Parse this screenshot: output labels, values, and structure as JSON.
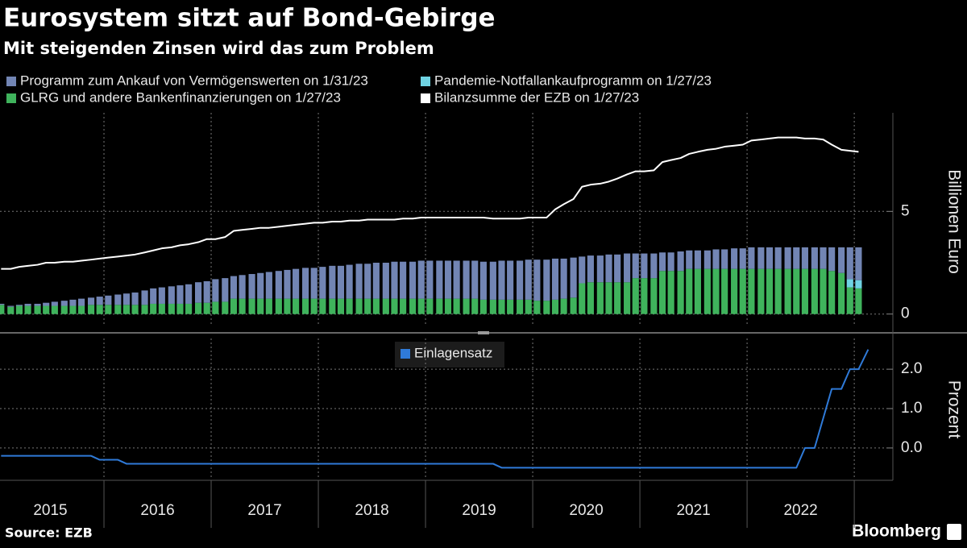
{
  "chart_data": [
    {
      "type": "bar",
      "stacked": true,
      "title": "Eurosystem sitzt auf Bond-Gebirge",
      "subtitle": "Mit steigenden Zinsen wird das zum Problem",
      "ylabel": "Billionen Euro",
      "xlim": [
        2015.03,
        2023.3
      ],
      "xgrid": [
        2016,
        2017,
        2018,
        2019,
        2020,
        2021,
        2022,
        2023
      ],
      "ylim": [
        -0.6,
        9.8
      ],
      "yticks": [
        0,
        5
      ],
      "grid": true,
      "x": [
        2015.04,
        2015.13,
        2015.21,
        2015.29,
        2015.38,
        2015.46,
        2015.54,
        2015.63,
        2015.71,
        2015.79,
        2015.88,
        2015.96,
        2016.04,
        2016.13,
        2016.21,
        2016.29,
        2016.38,
        2016.46,
        2016.54,
        2016.63,
        2016.71,
        2016.79,
        2016.88,
        2016.96,
        2017.04,
        2017.13,
        2017.21,
        2017.29,
        2017.38,
        2017.46,
        2017.54,
        2017.63,
        2017.71,
        2017.79,
        2017.88,
        2017.96,
        2018.04,
        2018.13,
        2018.21,
        2018.29,
        2018.38,
        2018.46,
        2018.54,
        2018.63,
        2018.71,
        2018.79,
        2018.88,
        2018.96,
        2019.04,
        2019.13,
        2019.21,
        2019.29,
        2019.38,
        2019.46,
        2019.54,
        2019.63,
        2019.71,
        2019.79,
        2019.88,
        2019.96,
        2020.04,
        2020.13,
        2020.21,
        2020.29,
        2020.38,
        2020.46,
        2020.54,
        2020.63,
        2020.71,
        2020.79,
        2020.88,
        2020.96,
        2021.04,
        2021.13,
        2021.21,
        2021.29,
        2021.38,
        2021.46,
        2021.54,
        2021.63,
        2021.71,
        2021.79,
        2021.88,
        2021.96,
        2022.04,
        2022.13,
        2022.21,
        2022.29,
        2022.38,
        2022.46,
        2022.54,
        2022.63,
        2022.71,
        2022.79,
        2022.88,
        2022.96,
        2023.04
      ],
      "series": [
        {
          "name": "Programm zum Ankauf von Vermögenswerten on 1/31/23",
          "type": "bar",
          "color": "#7285b4",
          "values": [
            0.05,
            0.05,
            0.05,
            0.1,
            0.1,
            0.15,
            0.2,
            0.25,
            0.3,
            0.35,
            0.35,
            0.4,
            0.45,
            0.5,
            0.55,
            0.6,
            0.7,
            0.75,
            0.8,
            0.85,
            0.9,
            0.95,
            1.0,
            1.05,
            1.1,
            1.15,
            1.1,
            1.15,
            1.2,
            1.25,
            1.3,
            1.35,
            1.4,
            1.45,
            1.5,
            1.5,
            1.55,
            1.6,
            1.6,
            1.65,
            1.7,
            1.7,
            1.75,
            1.75,
            1.8,
            1.8,
            1.8,
            1.85,
            1.85,
            1.85,
            1.85,
            1.85,
            1.85,
            1.85,
            1.85,
            1.85,
            1.9,
            1.9,
            1.9,
            1.95,
            2.0,
            2.0,
            2.0,
            1.95,
            1.95,
            1.3,
            1.3,
            1.3,
            1.35,
            1.35,
            1.4,
            1.2,
            1.2,
            1.2,
            0.9,
            0.9,
            0.95,
            0.9,
            0.9,
            0.9,
            0.95,
            0.95,
            1.0,
            1.0,
            1.05,
            1.05,
            1.05,
            1.05,
            1.05,
            1.05,
            1.05,
            1.05,
            1.05,
            1.15,
            1.25,
            1.55,
            1.6
          ]
        },
        {
          "name": "Pandemie-Notfallankaufprogramm on 1/27/23",
          "type": "bar",
          "color": "#6fd3e3",
          "values": [
            0,
            0,
            0,
            0,
            0,
            0,
            0,
            0,
            0,
            0,
            0,
            0,
            0,
            0,
            0,
            0,
            0,
            0,
            0,
            0,
            0,
            0,
            0,
            0,
            0,
            0,
            0,
            0,
            0,
            0,
            0,
            0,
            0,
            0,
            0,
            0,
            0,
            0,
            0,
            0,
            0,
            0,
            0,
            0,
            0,
            0,
            0,
            0,
            0,
            0,
            0,
            0,
            0,
            0,
            0,
            0,
            0,
            0,
            0,
            0,
            0,
            0,
            0,
            0,
            0,
            0,
            0,
            0,
            0,
            0,
            0,
            0,
            0,
            0,
            0,
            0,
            0,
            0,
            0,
            0,
            0,
            0,
            0,
            0,
            0,
            0,
            0,
            0,
            0,
            0,
            0,
            0,
            0,
            0,
            0,
            0.4,
            0.4
          ]
        },
        {
          "name": "GLRG und andere Bankenfinanzierungen on 1/27/23",
          "type": "bar",
          "color": "#3fb35c",
          "values": [
            0.45,
            0.35,
            0.4,
            0.4,
            0.4,
            0.4,
            0.4,
            0.4,
            0.4,
            0.4,
            0.45,
            0.45,
            0.45,
            0.45,
            0.45,
            0.45,
            0.45,
            0.5,
            0.5,
            0.5,
            0.5,
            0.5,
            0.55,
            0.55,
            0.6,
            0.6,
            0.75,
            0.75,
            0.75,
            0.75,
            0.75,
            0.75,
            0.75,
            0.75,
            0.75,
            0.75,
            0.75,
            0.75,
            0.75,
            0.75,
            0.75,
            0.75,
            0.75,
            0.75,
            0.75,
            0.75,
            0.75,
            0.75,
            0.75,
            0.75,
            0.75,
            0.75,
            0.75,
            0.75,
            0.7,
            0.7,
            0.7,
            0.7,
            0.7,
            0.7,
            0.65,
            0.65,
            0.7,
            0.75,
            0.8,
            1.5,
            1.55,
            1.55,
            1.55,
            1.55,
            1.55,
            1.75,
            1.75,
            1.75,
            2.1,
            2.1,
            2.1,
            2.2,
            2.2,
            2.2,
            2.2,
            2.2,
            2.2,
            2.2,
            2.2,
            2.2,
            2.2,
            2.2,
            2.2,
            2.2,
            2.2,
            2.2,
            2.2,
            2.1,
            2.0,
            1.3,
            1.25
          ]
        },
        {
          "name": "Bilanzsumme der EZB on 1/27/23",
          "type": "line",
          "color": "#ffffff",
          "values": [
            2.2,
            2.2,
            2.3,
            2.35,
            2.4,
            2.5,
            2.5,
            2.55,
            2.55,
            2.6,
            2.65,
            2.7,
            2.75,
            2.8,
            2.85,
            2.9,
            3.0,
            3.1,
            3.2,
            3.25,
            3.35,
            3.4,
            3.5,
            3.65,
            3.65,
            3.75,
            4.05,
            4.1,
            4.15,
            4.2,
            4.2,
            4.25,
            4.3,
            4.35,
            4.4,
            4.45,
            4.45,
            4.5,
            4.5,
            4.55,
            4.55,
            4.6,
            4.6,
            4.6,
            4.6,
            4.65,
            4.65,
            4.7,
            4.7,
            4.7,
            4.7,
            4.7,
            4.7,
            4.7,
            4.7,
            4.65,
            4.65,
            4.65,
            4.65,
            4.7,
            4.7,
            4.7,
            5.1,
            5.35,
            5.6,
            6.2,
            6.3,
            6.35,
            6.45,
            6.6,
            6.8,
            6.95,
            6.95,
            7.0,
            7.4,
            7.5,
            7.6,
            7.8,
            7.9,
            8.0,
            8.05,
            8.15,
            8.2,
            8.25,
            8.45,
            8.5,
            8.55,
            8.6,
            8.6,
            8.6,
            8.55,
            8.55,
            8.5,
            8.25,
            8.0,
            7.95,
            7.9
          ]
        }
      ]
    },
    {
      "type": "line",
      "ylabel": "Prozent",
      "xlim": [
        2015.03,
        2023.3
      ],
      "xgrid": [
        2016,
        2017,
        2018,
        2019,
        2020,
        2021,
        2022,
        2023
      ],
      "xticks": [
        {
          "value": 2015.5,
          "label": "2015"
        },
        {
          "value": 2016.5,
          "label": "2016"
        },
        {
          "value": 2017.5,
          "label": "2017"
        },
        {
          "value": 2018.5,
          "label": "2018"
        },
        {
          "value": 2019.5,
          "label": "2019"
        },
        {
          "value": 2020.5,
          "label": "2020"
        },
        {
          "value": 2021.5,
          "label": "2021"
        },
        {
          "value": 2022.5,
          "label": "2022"
        }
      ],
      "ylim": [
        -0.8,
        2.78
      ],
      "yticks": [
        {
          "value": 0,
          "label": "0.0"
        },
        {
          "value": 1,
          "label": "1.0"
        },
        {
          "value": 2,
          "label": "2.0"
        }
      ],
      "grid": true,
      "x": [
        2015.04,
        2015.13,
        2015.21,
        2015.29,
        2015.38,
        2015.46,
        2015.54,
        2015.63,
        2015.71,
        2015.79,
        2015.88,
        2015.96,
        2016.04,
        2016.13,
        2016.21,
        2016.29,
        2016.38,
        2016.46,
        2016.54,
        2016.63,
        2016.71,
        2016.79,
        2016.88,
        2016.96,
        2017.04,
        2017.13,
        2017.21,
        2017.29,
        2017.38,
        2017.46,
        2017.54,
        2017.63,
        2017.71,
        2017.79,
        2017.88,
        2017.96,
        2018.04,
        2018.13,
        2018.21,
        2018.29,
        2018.38,
        2018.46,
        2018.54,
        2018.63,
        2018.71,
        2018.79,
        2018.88,
        2018.96,
        2019.04,
        2019.13,
        2019.21,
        2019.29,
        2019.38,
        2019.46,
        2019.54,
        2019.63,
        2019.71,
        2019.79,
        2019.88,
        2019.96,
        2020.04,
        2020.13,
        2020.21,
        2020.29,
        2020.38,
        2020.46,
        2020.54,
        2020.63,
        2020.71,
        2020.79,
        2020.88,
        2020.96,
        2021.04,
        2021.13,
        2021.21,
        2021.29,
        2021.38,
        2021.46,
        2021.54,
        2021.63,
        2021.71,
        2021.79,
        2021.88,
        2021.96,
        2022.04,
        2022.13,
        2022.21,
        2022.29,
        2022.38,
        2022.46,
        2022.54,
        2022.63,
        2022.71,
        2022.79,
        2022.88,
        2022.96,
        2023.04,
        2023.13
      ],
      "series": [
        {
          "name": "Einlagensatz",
          "type": "line",
          "color": "#2f7ad8",
          "values": [
            -0.2,
            -0.2,
            -0.2,
            -0.2,
            -0.2,
            -0.2,
            -0.2,
            -0.2,
            -0.2,
            -0.2,
            -0.2,
            -0.3,
            -0.3,
            -0.3,
            -0.4,
            -0.4,
            -0.4,
            -0.4,
            -0.4,
            -0.4,
            -0.4,
            -0.4,
            -0.4,
            -0.4,
            -0.4,
            -0.4,
            -0.4,
            -0.4,
            -0.4,
            -0.4,
            -0.4,
            -0.4,
            -0.4,
            -0.4,
            -0.4,
            -0.4,
            -0.4,
            -0.4,
            -0.4,
            -0.4,
            -0.4,
            -0.4,
            -0.4,
            -0.4,
            -0.4,
            -0.4,
            -0.4,
            -0.4,
            -0.4,
            -0.4,
            -0.4,
            -0.4,
            -0.4,
            -0.4,
            -0.4,
            -0.4,
            -0.5,
            -0.5,
            -0.5,
            -0.5,
            -0.5,
            -0.5,
            -0.5,
            -0.5,
            -0.5,
            -0.5,
            -0.5,
            -0.5,
            -0.5,
            -0.5,
            -0.5,
            -0.5,
            -0.5,
            -0.5,
            -0.5,
            -0.5,
            -0.5,
            -0.5,
            -0.5,
            -0.5,
            -0.5,
            -0.5,
            -0.5,
            -0.5,
            -0.5,
            -0.5,
            -0.5,
            -0.5,
            -0.5,
            -0.5,
            0,
            0,
            0.75,
            1.5,
            1.5,
            2.0,
            2.0,
            2.5
          ]
        }
      ]
    }
  ],
  "source": "Source: EZB",
  "brand": "Bloomberg"
}
